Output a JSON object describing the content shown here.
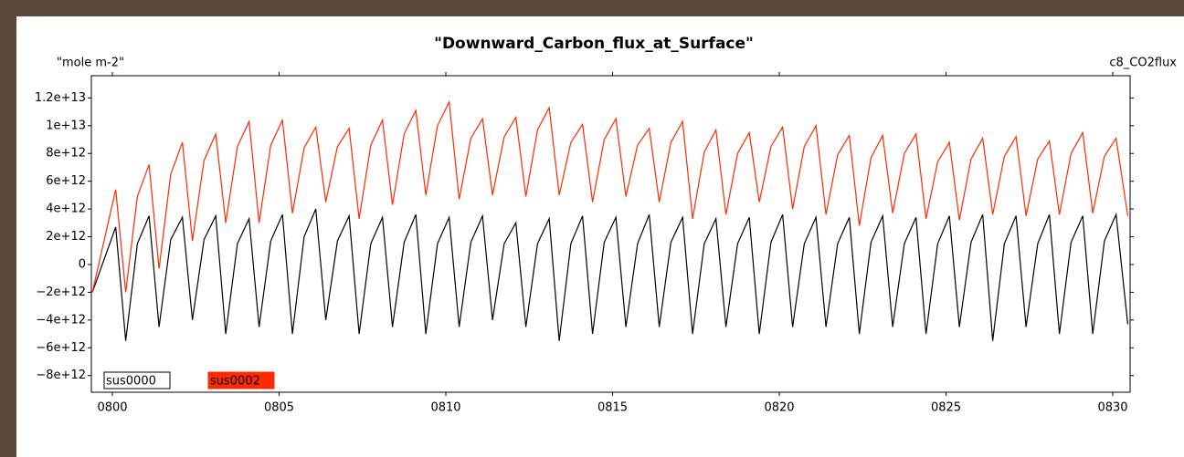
{
  "chart_data": {
    "type": "line",
    "title": "\"Downward_Carbon_flux_at_Surface\"",
    "y_unit_label": "\"mole m-2\"",
    "variable_label": "c8_CO2flux",
    "xlim": [
      799.37,
      830.52
    ],
    "xticks": [
      {
        "value": 800,
        "label": "0800"
      },
      {
        "value": 805,
        "label": "0805"
      },
      {
        "value": 810,
        "label": "0810"
      },
      {
        "value": 815,
        "label": "0815"
      },
      {
        "value": 820,
        "label": "0820"
      },
      {
        "value": 825,
        "label": "0825"
      },
      {
        "value": 830,
        "label": "0830"
      }
    ],
    "ylim": [
      -9200000000000.0,
      13600000000000.0
    ],
    "yticks": [
      {
        "value": 12000000000000.0,
        "label": "1.2e+13"
      },
      {
        "value": 10000000000000.0,
        "label": "1e+13"
      },
      {
        "value": 8000000000000.0,
        "label": "8e+12"
      },
      {
        "value": 6000000000000.0,
        "label": "6e+12"
      },
      {
        "value": 4000000000000.0,
        "label": "4e+12"
      },
      {
        "value": 2000000000000.0,
        "label": "2e+12"
      },
      0,
      {
        "value": -2000000000000.0,
        "label": "−2e+12"
      },
      {
        "value": -4000000000000.0,
        "label": "−4e+12"
      },
      {
        "value": -6000000000000.0,
        "label": "−6e+12"
      },
      {
        "value": -8000000000000.0,
        "label": "−8e+12"
      }
    ],
    "grid": false,
    "x": [
      799.4,
      800.1,
      800.4,
      800.75,
      801.1,
      801.4,
      801.75,
      802.1,
      802.4,
      802.75,
      803.1,
      803.4,
      803.75,
      804.1,
      804.4,
      804.75,
      805.1,
      805.4,
      805.75,
      806.1,
      806.4,
      806.75,
      807.1,
      807.4,
      807.75,
      808.1,
      808.4,
      808.75,
      809.1,
      809.4,
      809.75,
      810.1,
      810.4,
      810.75,
      811.1,
      811.4,
      811.75,
      812.1,
      812.4,
      812.75,
      813.1,
      813.4,
      813.75,
      814.1,
      814.4,
      814.75,
      815.1,
      815.4,
      815.75,
      816.1,
      816.4,
      816.75,
      817.1,
      817.4,
      817.75,
      818.1,
      818.4,
      818.75,
      819.1,
      819.4,
      819.75,
      820.1,
      820.4,
      820.75,
      821.1,
      821.4,
      821.75,
      822.1,
      822.4,
      822.75,
      823.1,
      823.4,
      823.75,
      824.1,
      824.4,
      824.75,
      825.1,
      825.4,
      825.75,
      826.1,
      826.4,
      826.75,
      827.1,
      827.4,
      827.75,
      828.1,
      828.4,
      828.75,
      829.1,
      829.4,
      829.75,
      830.1,
      830.45
    ],
    "series": [
      {
        "name": "sus0000",
        "color": "#000000",
        "values": [
          -2000000000000.0,
          2700000000000.0,
          -5500000000000.0,
          1500000000000.0,
          3500000000000.0,
          -4500000000000.0,
          1800000000000.0,
          3400000000000.0,
          -4000000000000.0,
          1800000000000.0,
          3500000000000.0,
          -5000000000000.0,
          1500000000000.0,
          3300000000000.0,
          -4500000000000.0,
          1700000000000.0,
          3600000000000.0,
          -5000000000000.0,
          2000000000000.0,
          4000000000000.0,
          -4000000000000.0,
          1700000000000.0,
          3500000000000.0,
          -5000000000000.0,
          1500000000000.0,
          3400000000000.0,
          -4500000000000.0,
          1600000000000.0,
          3600000000000.0,
          -5000000000000.0,
          1500000000000.0,
          3400000000000.0,
          -4500000000000.0,
          1600000000000.0,
          3500000000000.0,
          -4000000000000.0,
          1500000000000.0,
          3000000000000.0,
          -4500000000000.0,
          1500000000000.0,
          3300000000000.0,
          -5500000000000.0,
          1500000000000.0,
          3500000000000.0,
          -5000000000000.0,
          1600000000000.0,
          3400000000000.0,
          -4500000000000.0,
          1500000000000.0,
          3600000000000.0,
          -4500000000000.0,
          1600000000000.0,
          3400000000000.0,
          -5000000000000.0,
          1500000000000.0,
          3300000000000.0,
          -4500000000000.0,
          1500000000000.0,
          3400000000000.0,
          -5000000000000.0,
          1600000000000.0,
          3600000000000.0,
          -4500000000000.0,
          1500000000000.0,
          3400000000000.0,
          -4500000000000.0,
          1500000000000.0,
          3400000000000.0,
          -5000000000000.0,
          1600000000000.0,
          3500000000000.0,
          -4500000000000.0,
          1500000000000.0,
          3400000000000.0,
          -5000000000000.0,
          1500000000000.0,
          3500000000000.0,
          -4500000000000.0,
          1600000000000.0,
          3600000000000.0,
          -5500000000000.0,
          1500000000000.0,
          3500000000000.0,
          -4500000000000.0,
          1500000000000.0,
          3600000000000.0,
          -5000000000000.0,
          1600000000000.0,
          3500000000000.0,
          -5000000000000.0,
          1700000000000.0,
          3600000000000.0,
          -4300000000000.0
        ]
      },
      {
        "name": "sus0002",
        "color": "#ff2a00",
        "values": [
          -2000000000000.0,
          5400000000000.0,
          -2000000000000.0,
          4900000000000.0,
          7200000000000.0,
          -300000000000.0,
          6500000000000.0,
          8800000000000.0,
          1700000000000.0,
          7500000000000.0,
          9400000000000.0,
          3000000000000.0,
          8500000000000.0,
          10300000000000.0,
          3000000000000.0,
          8600000000000.0,
          10400000000000.0,
          3700000000000.0,
          8400000000000.0,
          9900000000000.0,
          4500000000000.0,
          8500000000000.0,
          9800000000000.0,
          3300000000000.0,
          8600000000000.0,
          10400000000000.0,
          4300000000000.0,
          9400000000000.0,
          11100000000000.0,
          5000000000000.0,
          10000000000000.0,
          11700000000000.0,
          4700000000000.0,
          9100000000000.0,
          10500000000000.0,
          5000000000000.0,
          9200000000000.0,
          10600000000000.0,
          4900000000000.0,
          9700000000000.0,
          11300000000000.0,
          5000000000000.0,
          8800000000000.0,
          10100000000000.0,
          4500000000000.0,
          9000000000000.0,
          10500000000000.0,
          4900000000000.0,
          8600000000000.0,
          9800000000000.0,
          4500000000000.0,
          8800000000000.0,
          10300000000000.0,
          3300000000000.0,
          8100000000000.0,
          9700000000000.0,
          3600000000000.0,
          8000000000000.0,
          9500000000000.0,
          4500000000000.0,
          8500000000000.0,
          9900000000000.0,
          4000000000000.0,
          8500000000000.0,
          10000000000000.0,
          3600000000000.0,
          7900000000000.0,
          9300000000000.0,
          2800000000000.0,
          7700000000000.0,
          9300000000000.0,
          3700000000000.0,
          8000000000000.0,
          9400000000000.0,
          3300000000000.0,
          7400000000000.0,
          8800000000000.0,
          3200000000000.0,
          7600000000000.0,
          9100000000000.0,
          3600000000000.0,
          7800000000000.0,
          9200000000000.0,
          3500000000000.0,
          7600000000000.0,
          8900000000000.0,
          3600000000000.0,
          8000000000000.0,
          9500000000000.0,
          3700000000000.0,
          7800000000000.0,
          9100000000000.0,
          3500000000000.0
        ]
      }
    ]
  }
}
